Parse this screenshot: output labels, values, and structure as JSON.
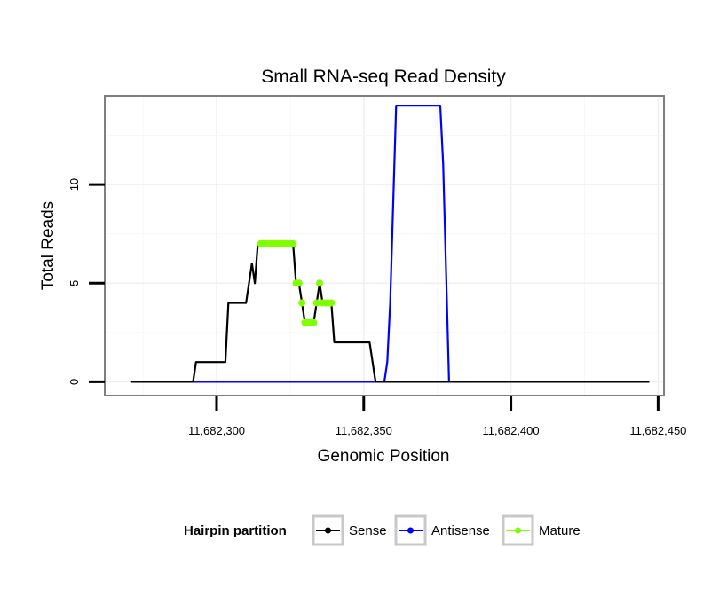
{
  "chart_data": {
    "type": "line",
    "title": "Small RNA-seq Read Density",
    "xlabel": "Genomic Position",
    "ylabel": "Total Reads",
    "xlim": [
      11682262,
      11682452
    ],
    "ylim": [
      -0.7,
      14.5
    ],
    "x_ticks": [
      11682300,
      11682350,
      11682400,
      11682450
    ],
    "x_tick_labels": [
      "11,682,300",
      "11,682,350",
      "11,682,400",
      "11,682,450"
    ],
    "y_ticks": [
      0,
      5,
      10
    ],
    "y_tick_labels": [
      "0",
      "5",
      "10"
    ],
    "grid": true,
    "legend": {
      "title": "Hairpin partition",
      "position": "bottom",
      "entries": [
        "Sense",
        "Antisense",
        "Mature"
      ]
    },
    "colors": {
      "Sense": "#000000",
      "Antisense": "#0000ff",
      "Mature": "#7fff00"
    },
    "series": [
      {
        "name": "Sense",
        "x": [
          11682271,
          11682292,
          11682293,
          11682303,
          11682304,
          11682309,
          11682310,
          11682312,
          11682313,
          11682314,
          11682315,
          11682326,
          11682327,
          11682328,
          11682329,
          11682330,
          11682333,
          11682334,
          11682335,
          11682336,
          11682339,
          11682340,
          11682352,
          11682354,
          11682447
        ],
        "y": [
          0,
          0,
          1,
          1,
          4,
          4,
          4,
          6,
          5,
          7,
          7,
          7,
          5,
          5,
          4,
          3,
          3,
          4,
          5,
          4,
          4,
          2,
          2,
          0,
          0
        ]
      },
      {
        "name": "Antisense",
        "x": [
          11682292,
          11682357,
          11682358,
          11682359,
          11682361,
          11682362,
          11682376,
          11682377,
          11682379,
          11682447
        ],
        "y": [
          0,
          0,
          1,
          4,
          14,
          14,
          14,
          11,
          0,
          0
        ]
      },
      {
        "name": "Mature",
        "x": [
          11682315,
          11682316,
          11682317,
          11682318,
          11682319,
          11682320,
          11682321,
          11682322,
          11682323,
          11682324,
          11682325,
          11682326,
          11682327,
          11682328,
          11682329,
          11682330,
          11682331,
          11682332,
          11682333,
          11682334,
          11682335,
          11682336,
          11682337,
          11682338,
          11682339
        ],
        "y": [
          7,
          7,
          7,
          7,
          7,
          7,
          7,
          7,
          7,
          7,
          7,
          7,
          5,
          5,
          4,
          3,
          3,
          3,
          3,
          4,
          5,
          4,
          4,
          4,
          4
        ]
      }
    ]
  }
}
